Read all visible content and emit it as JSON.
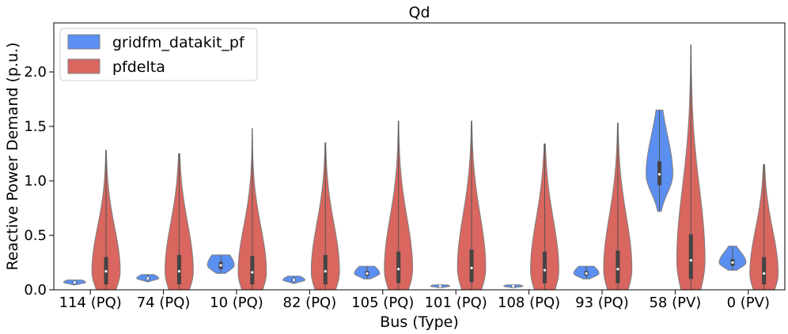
{
  "chart_data": {
    "type": "violin",
    "title": "Qd",
    "xlabel": "Bus (Type)",
    "ylabel": "Reactive Power Demand (p.u.)",
    "ylim": [
      0.0,
      2.45
    ],
    "yticks": [
      0.0,
      0.5,
      1.0,
      1.5,
      2.0
    ],
    "ytick_labels": [
      "0.0",
      "0.5",
      "1.0",
      "1.5",
      "2.0"
    ],
    "categories": [
      "114 (PQ)",
      "74 (PQ)",
      "10 (PQ)",
      "82 (PQ)",
      "105 (PQ)",
      "101 (PQ)",
      "108 (PQ)",
      "93 (PQ)",
      "58 (PV)",
      "0 (PV)"
    ],
    "legend_position": "top-left",
    "series": [
      {
        "name": "gridfm_datakit_pf",
        "color": "#5b8ff2",
        "violins": [
          {
            "min": 0.045,
            "max": 0.09,
            "q1": 0.06,
            "median": 0.068,
            "q3": 0.075,
            "max_width": 0.7
          },
          {
            "min": 0.075,
            "max": 0.14,
            "q1": 0.095,
            "median": 0.105,
            "q3": 0.115,
            "max_width": 0.7
          },
          {
            "min": 0.15,
            "max": 0.32,
            "q1": 0.19,
            "median": 0.225,
            "q3": 0.255,
            "max_width": 0.85
          },
          {
            "min": 0.06,
            "max": 0.125,
            "q1": 0.08,
            "median": 0.09,
            "q3": 0.1,
            "max_width": 0.7
          },
          {
            "min": 0.1,
            "max": 0.215,
            "q1": 0.13,
            "median": 0.15,
            "q3": 0.17,
            "max_width": 0.8
          },
          {
            "min": 0.02,
            "max": 0.045,
            "q1": 0.028,
            "median": 0.033,
            "q3": 0.037,
            "max_width": 0.6
          },
          {
            "min": 0.02,
            "max": 0.045,
            "q1": 0.028,
            "median": 0.033,
            "q3": 0.037,
            "max_width": 0.6
          },
          {
            "min": 0.1,
            "max": 0.215,
            "q1": 0.13,
            "median": 0.15,
            "q3": 0.17,
            "max_width": 0.8
          },
          {
            "min": 0.72,
            "max": 1.65,
            "q1": 0.96,
            "median": 1.06,
            "q3": 1.18,
            "max_width": 0.85
          },
          {
            "min": 0.18,
            "max": 0.4,
            "q1": 0.22,
            "median": 0.25,
            "q3": 0.28,
            "max_width": 0.85
          }
        ]
      },
      {
        "name": "pfdelta",
        "color": "#d9665f",
        "violins": [
          {
            "min": 0.0,
            "max": 1.28,
            "q1": 0.05,
            "median": 0.17,
            "q3": 0.3,
            "max_width": 0.9
          },
          {
            "min": 0.0,
            "max": 1.25,
            "q1": 0.05,
            "median": 0.17,
            "q3": 0.32,
            "max_width": 0.9
          },
          {
            "min": 0.0,
            "max": 1.48,
            "q1": 0.05,
            "median": 0.16,
            "q3": 0.31,
            "max_width": 0.9
          },
          {
            "min": 0.0,
            "max": 1.35,
            "q1": 0.05,
            "median": 0.17,
            "q3": 0.32,
            "max_width": 0.9
          },
          {
            "min": 0.0,
            "max": 1.55,
            "q1": 0.06,
            "median": 0.19,
            "q3": 0.35,
            "max_width": 0.9
          },
          {
            "min": 0.0,
            "max": 1.55,
            "q1": 0.07,
            "median": 0.2,
            "q3": 0.37,
            "max_width": 0.9
          },
          {
            "min": 0.0,
            "max": 1.34,
            "q1": 0.06,
            "median": 0.18,
            "q3": 0.35,
            "max_width": 0.9
          },
          {
            "min": 0.0,
            "max": 1.53,
            "q1": 0.06,
            "median": 0.19,
            "q3": 0.36,
            "max_width": 0.9
          },
          {
            "min": 0.0,
            "max": 2.25,
            "q1": 0.1,
            "median": 0.27,
            "q3": 0.51,
            "max_width": 0.9
          },
          {
            "min": 0.0,
            "max": 1.15,
            "q1": 0.05,
            "median": 0.15,
            "q3": 0.3,
            "max_width": 0.9
          }
        ]
      }
    ]
  }
}
